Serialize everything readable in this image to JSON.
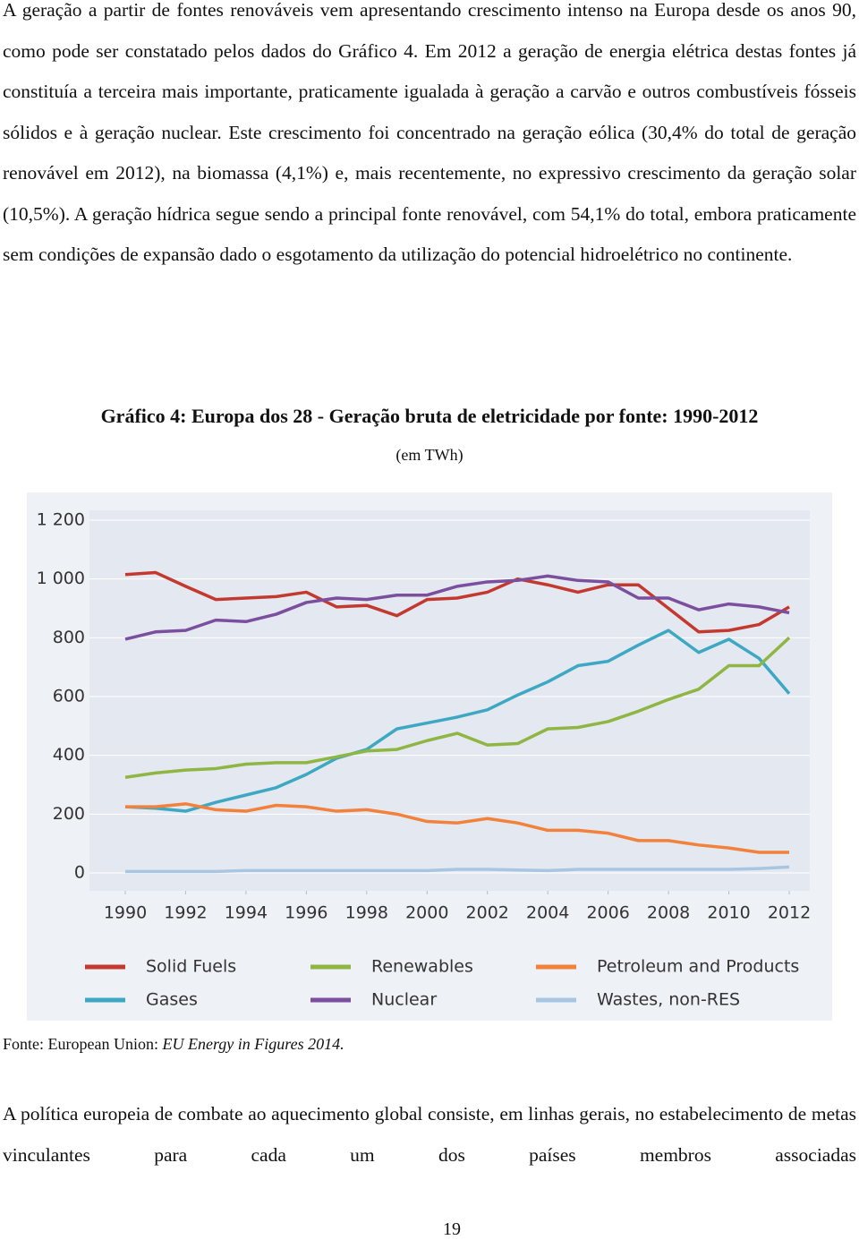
{
  "paragraphs": [
    "A geração a partir de fontes renováveis vem apresentando crescimento intenso na Europa desde os anos 90, como pode ser constatado pelos dados do Gráfico 4. Em 2012 a geração de energia elétrica destas fontes já constituía a terceira mais importante, praticamente igualada à geração a carvão e outros combustíveis fósseis sólidos e à geração nuclear. Este crescimento foi concentrado na geração eólica (30,4% do total de geração renovável em 2012), na biomassa (4,1%) e, mais recentemente, no expressivo crescimento da geração solar (10,5%). A geração hídrica segue sendo a principal fonte renovável, com 54,1% do total, embora praticamente sem condições de expansão dado o esgotamento da utilização do potencial hidroelétrico no continente.",
    "A política europeia de combate ao aquecimento global consiste, em linhas gerais, no estabelecimento de metas vinculantes para cada um dos países membros associadas"
  ],
  "figure": {
    "title": "Gráfico 4: Europa dos 28 - Geração bruta de eletricidade por fonte: 1990-2012",
    "subtitle": "(em TWh)",
    "source_prefix": "Fonte: European Union: ",
    "source_title": "EU Energy in Figures 2014."
  },
  "page_number": "19",
  "chart_data": {
    "type": "line",
    "x": [
      1990,
      1991,
      1992,
      1993,
      1994,
      1995,
      1996,
      1997,
      1998,
      1999,
      2000,
      2001,
      2002,
      2003,
      2004,
      2005,
      2006,
      2007,
      2008,
      2009,
      2010,
      2011,
      2012
    ],
    "xlim": [
      1990,
      2012
    ],
    "xticks": [
      1990,
      1992,
      1994,
      1996,
      1998,
      2000,
      2002,
      2004,
      2006,
      2008,
      2010,
      2012
    ],
    "ylim": [
      0,
      1200
    ],
    "yticks": [
      0,
      200,
      400,
      600,
      800,
      {
        "value": 1000,
        "label": "1 000"
      },
      {
        "value": 1200,
        "label": "1 200"
      }
    ],
    "grid": true,
    "legend": "bottom",
    "series": [
      {
        "name": "Solid Fuels",
        "color": "#c4392f",
        "values": [
          1015,
          1022,
          975,
          930,
          935,
          940,
          955,
          905,
          910,
          875,
          930,
          935,
          955,
          1000,
          980,
          955,
          980,
          980,
          900,
          820,
          825,
          845,
          905
        ]
      },
      {
        "name": "Gases",
        "color": "#3ea8c3",
        "values": [
          225,
          220,
          210,
          240,
          265,
          290,
          335,
          390,
          420,
          490,
          510,
          530,
          555,
          605,
          650,
          705,
          720,
          775,
          825,
          750,
          795,
          730,
          610
        ]
      },
      {
        "name": "Renewables",
        "color": "#8fb542",
        "values": [
          325,
          340,
          350,
          355,
          370,
          375,
          375,
          395,
          415,
          420,
          450,
          475,
          435,
          440,
          490,
          495,
          515,
          550,
          590,
          625,
          705,
          705,
          800
        ]
      },
      {
        "name": "Nuclear",
        "color": "#7b4f9d",
        "values": [
          795,
          820,
          825,
          860,
          855,
          880,
          920,
          935,
          930,
          945,
          945,
          975,
          990,
          995,
          1010,
          995,
          990,
          935,
          935,
          895,
          915,
          905,
          885
        ]
      },
      {
        "name": "Petroleum and Products",
        "color": "#f1813b",
        "values": [
          225,
          225,
          235,
          215,
          210,
          230,
          225,
          210,
          215,
          200,
          175,
          170,
          185,
          170,
          145,
          145,
          135,
          110,
          110,
          95,
          85,
          70,
          70
        ]
      },
      {
        "name": "Wastes, non-RES",
        "color": "#a8c6e2",
        "values": [
          5,
          5,
          5,
          5,
          8,
          8,
          8,
          8,
          8,
          8,
          8,
          12,
          12,
          10,
          8,
          12,
          12,
          12,
          12,
          12,
          12,
          15,
          20
        ]
      }
    ]
  }
}
